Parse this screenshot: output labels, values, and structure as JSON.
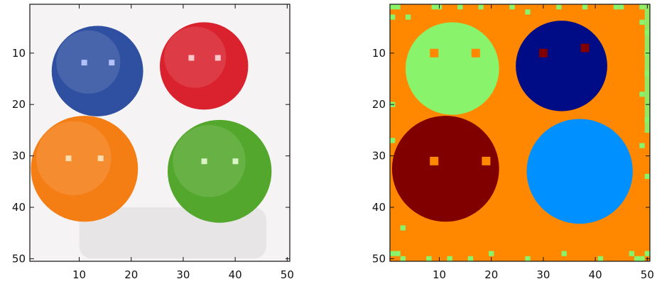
{
  "figure": {
    "panels": [
      {
        "name": "original-image",
        "description_source": "photo",
        "grid_size": [
          50,
          50
        ],
        "xticks": [
          10,
          20,
          30,
          40,
          50
        ],
        "yticks": [
          10,
          20,
          30,
          40,
          50
        ],
        "colors": {
          "background": "#f6f3f4",
          "shadow": "#cfcacc"
        },
        "balls": [
          {
            "name": "blue-ball",
            "color": "#2f4fa0",
            "highlight": "#b9c7ff"
          },
          {
            "name": "red-ball",
            "color": "#d9222d",
            "highlight": "#ffd0d4"
          },
          {
            "name": "orange-ball",
            "color": "#f47d14",
            "highlight": "#ffe0b6"
          },
          {
            "name": "green-ball",
            "color": "#52a72c",
            "highlight": "#e0f7cf"
          }
        ]
      },
      {
        "name": "segmented-image",
        "grid_size": [
          50,
          50
        ],
        "xticks": [
          10,
          20,
          30,
          40,
          50
        ],
        "yticks": [
          10,
          20,
          30,
          40,
          50
        ],
        "colors": {
          "background": "#ff8800",
          "noise": "#88f36b",
          "light-green": "#88f36b",
          "navy": "#000b86",
          "dark-red": "#800000",
          "sky-blue": "#0090ff",
          "orange": "#ff8800"
        }
      }
    ]
  }
}
